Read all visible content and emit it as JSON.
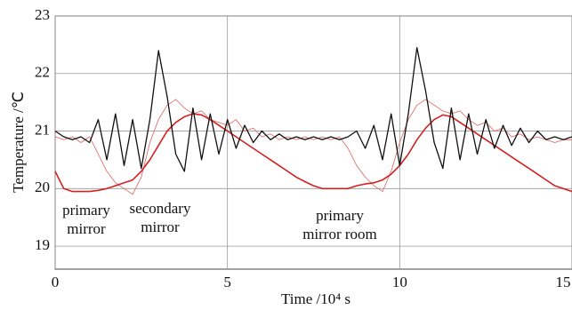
{
  "chart_data": {
    "type": "line",
    "xlabel": "Time /10⁴ s",
    "ylabel": "Temperature /℃",
    "xlim": [
      0,
      15
    ],
    "ylim": [
      18.6,
      23
    ],
    "xticks": [
      0,
      5,
      10,
      15
    ],
    "yticks": [
      19,
      20,
      21,
      22,
      23
    ],
    "grid": true,
    "x": [
      0,
      0.25,
      0.5,
      0.75,
      1,
      1.25,
      1.5,
      1.75,
      2,
      2.25,
      2.5,
      2.75,
      3,
      3.25,
      3.5,
      3.75,
      4,
      4.25,
      4.5,
      4.75,
      5,
      5.25,
      5.5,
      5.75,
      6,
      6.25,
      6.5,
      6.75,
      7,
      7.25,
      7.5,
      7.75,
      8,
      8.25,
      8.5,
      8.75,
      9,
      9.25,
      9.5,
      9.75,
      10,
      10.25,
      10.5,
      10.75,
      11,
      11.25,
      11.5,
      11.75,
      12,
      12.25,
      12.5,
      12.75,
      13,
      13.25,
      13.5,
      13.75,
      14,
      14.25,
      14.5,
      14.75,
      15
    ],
    "series": [
      {
        "color": "#e06060",
        "linewidth": 0.8,
        "values": [
          20.9,
          20.85,
          20.9,
          20.8,
          20.9,
          20.6,
          20.3,
          20.1,
          20.0,
          19.9,
          20.2,
          20.8,
          21.2,
          21.45,
          21.55,
          21.4,
          21.3,
          21.35,
          21.2,
          21.15,
          21.1,
          21.2,
          21.0,
          21.05,
          20.9,
          20.95,
          20.85,
          20.9,
          20.85,
          20.9,
          20.85,
          20.9,
          20.85,
          20.9,
          20.7,
          20.4,
          20.2,
          20.05,
          19.95,
          20.3,
          20.8,
          21.2,
          21.45,
          21.55,
          21.45,
          21.35,
          21.3,
          21.35,
          21.2,
          21.1,
          21.15,
          21.0,
          21.05,
          20.9,
          20.95,
          20.85,
          20.9,
          20.85,
          20.8,
          20.85,
          20.85
        ]
      },
      {
        "color": "#d42020",
        "linewidth": 1.6,
        "values": [
          20.3,
          20.0,
          19.95,
          19.95,
          19.95,
          19.97,
          20.0,
          20.05,
          20.1,
          20.15,
          20.3,
          20.5,
          20.75,
          21.0,
          21.15,
          21.25,
          21.3,
          21.28,
          21.2,
          21.1,
          21.0,
          20.9,
          20.8,
          20.7,
          20.6,
          20.5,
          20.4,
          20.3,
          20.2,
          20.12,
          20.05,
          20.0,
          20.0,
          20.0,
          20.0,
          20.05,
          20.08,
          20.1,
          20.15,
          20.25,
          20.4,
          20.6,
          20.85,
          21.05,
          21.2,
          21.28,
          21.25,
          21.15,
          21.05,
          20.95,
          20.85,
          20.75,
          20.65,
          20.55,
          20.45,
          20.35,
          20.25,
          20.15,
          20.05,
          20.0,
          19.95
        ]
      },
      {
        "color": "#111111",
        "linewidth": 1.3,
        "values": [
          21.0,
          20.9,
          20.85,
          20.9,
          20.8,
          21.2,
          20.5,
          21.3,
          20.4,
          21.2,
          20.35,
          21.2,
          22.4,
          21.6,
          20.6,
          20.3,
          21.4,
          20.5,
          21.3,
          20.6,
          21.2,
          20.7,
          21.1,
          20.8,
          21.0,
          20.85,
          20.95,
          20.85,
          20.9,
          20.85,
          20.9,
          20.85,
          20.9,
          20.85,
          20.9,
          21.0,
          20.7,
          21.1,
          20.5,
          21.3,
          20.4,
          21.3,
          22.45,
          21.7,
          20.8,
          20.35,
          21.4,
          20.5,
          21.3,
          20.6,
          21.2,
          20.7,
          21.1,
          20.75,
          21.05,
          20.8,
          21.0,
          20.85,
          20.9,
          20.85,
          20.9
        ]
      }
    ],
    "annotations": [
      {
        "lines": [
          "primary",
          "mirror"
        ]
      },
      {
        "lines": [
          "secondary",
          "mirror"
        ]
      },
      {
        "lines": [
          "primary",
          "mirror room"
        ]
      }
    ]
  }
}
